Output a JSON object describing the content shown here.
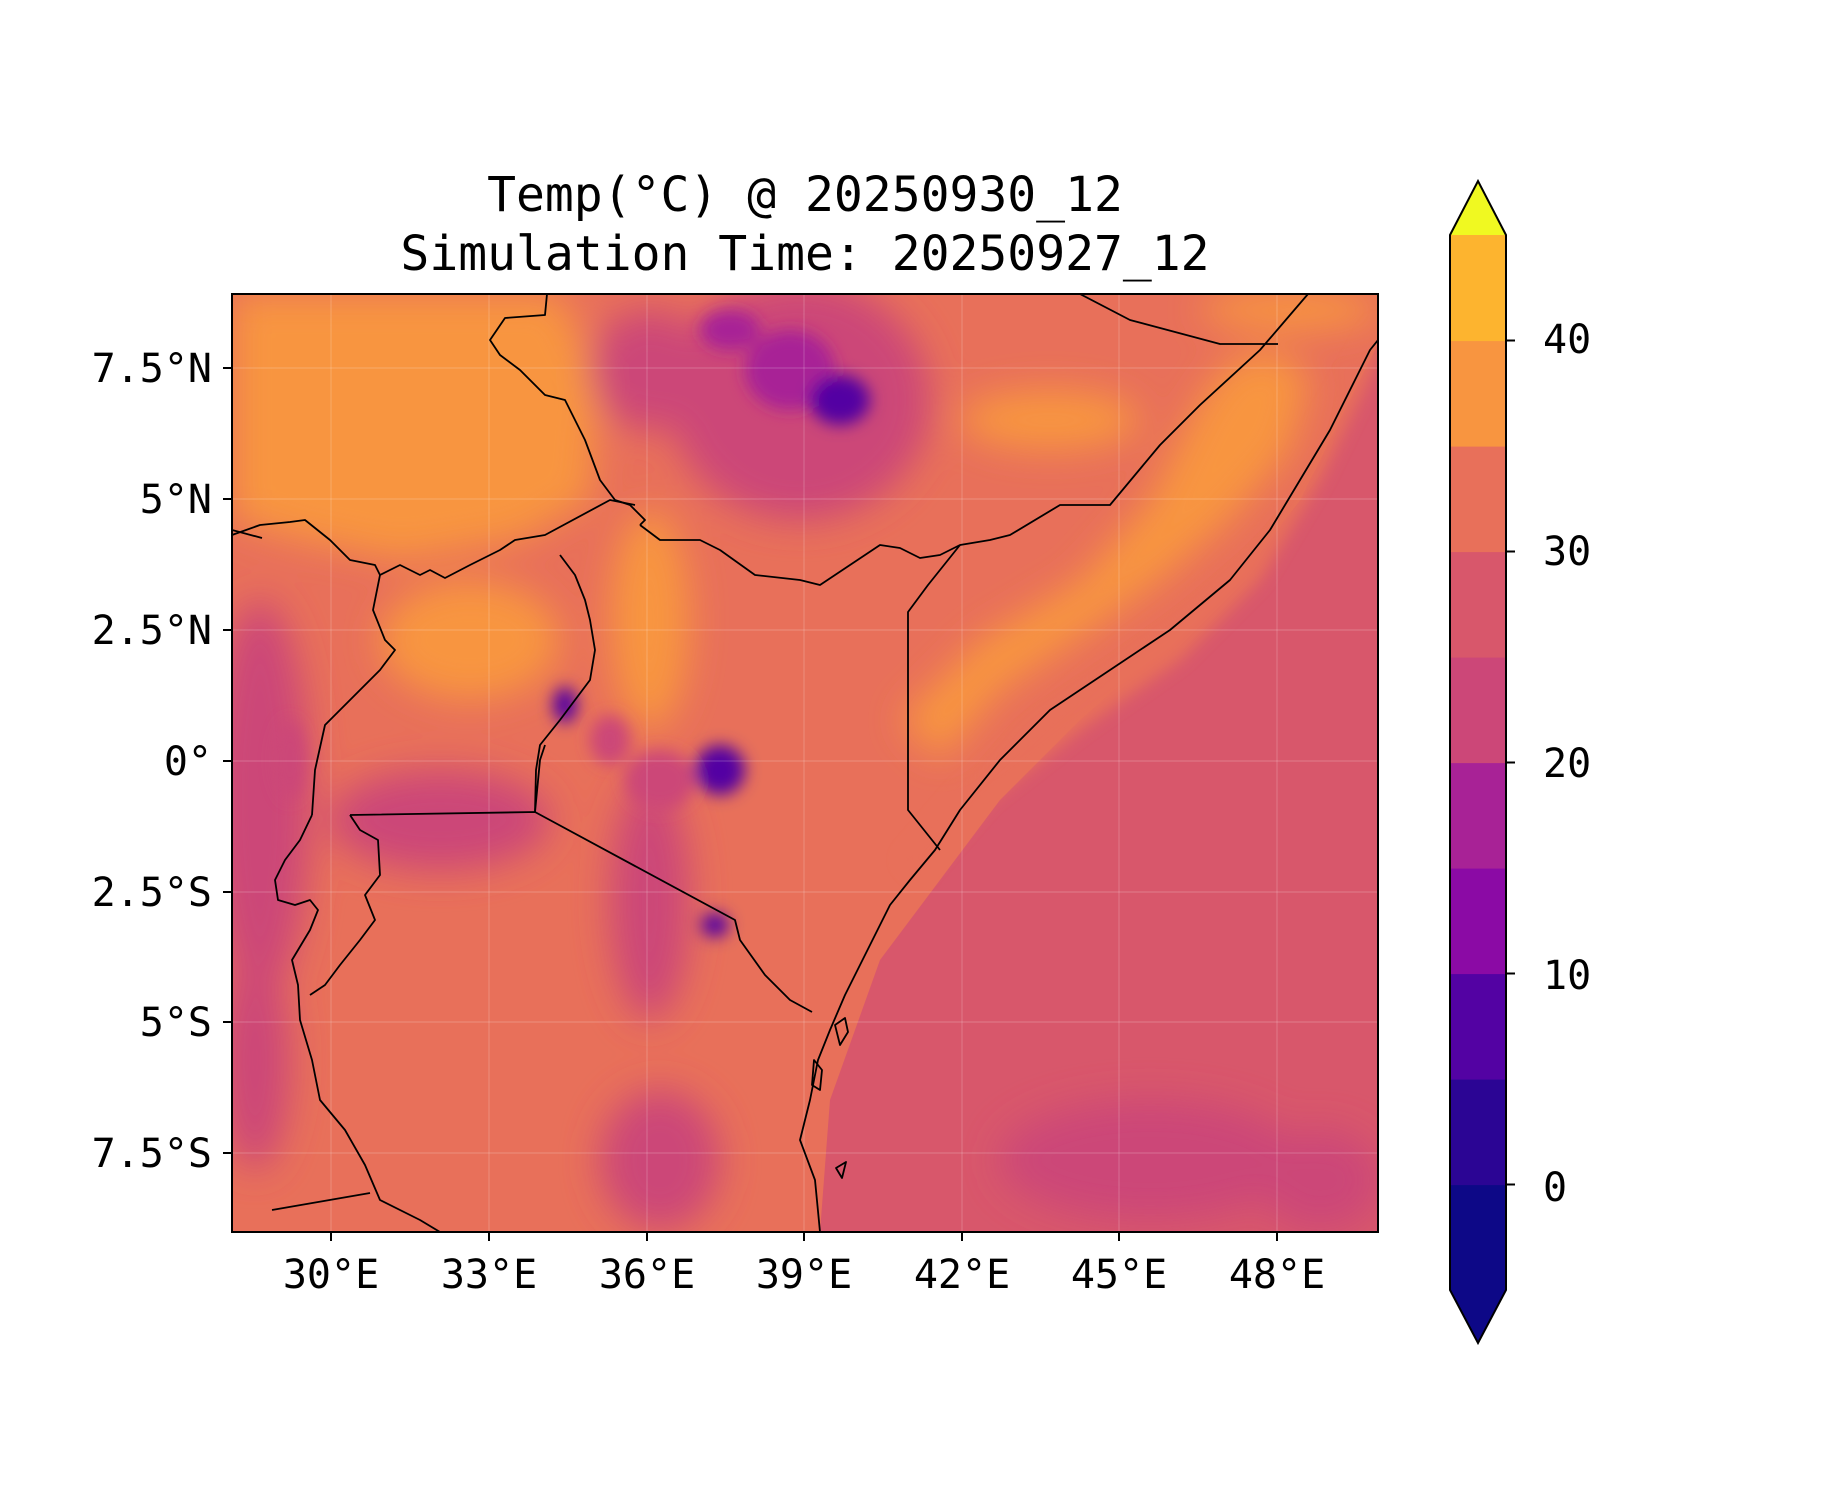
{
  "title_line_1": "Temp(°C) @ 20250930_12",
  "title_line_2": "Simulation Time: 20250927_12",
  "chart_data": {
    "type": "heatmap",
    "variable": "Temp(°C)",
    "valid_time": "20250930_12",
    "simulation_time": "20250927_12",
    "xlim": [
      27.5,
      49.3
    ],
    "ylim": [
      -9.3,
      8.7
    ],
    "x_ticks": [
      {
        "value": 30,
        "label": "30°E"
      },
      {
        "value": 33,
        "label": "33°E"
      },
      {
        "value": 36,
        "label": "36°E"
      },
      {
        "value": 39,
        "label": "39°E"
      },
      {
        "value": 42,
        "label": "42°E"
      },
      {
        "value": 45,
        "label": "45°E"
      },
      {
        "value": 48,
        "label": "48°E"
      }
    ],
    "y_ticks": [
      {
        "value": 7.5,
        "label": "7.5°N"
      },
      {
        "value": 5,
        "label": "5°N"
      },
      {
        "value": 2.5,
        "label": "2.5°N"
      },
      {
        "value": 0,
        "label": "0°"
      },
      {
        "value": -2.5,
        "label": "2.5°S"
      },
      {
        "value": -5,
        "label": "5°S"
      },
      {
        "value": -7.5,
        "label": "7.5°S"
      }
    ],
    "grid": true,
    "colorbar": {
      "levels": [
        -5,
        0,
        5,
        10,
        15,
        20,
        25,
        30,
        35,
        40,
        45
      ],
      "colors": [
        "#0d0887",
        "#2b0594",
        "#5302a3",
        "#8b0aa5",
        "#a82296",
        "#cc4778",
        "#d8576b",
        "#e8705a",
        "#f89540",
        "#fdb42f",
        "#f0f921"
      ],
      "extend": "both",
      "ticks": [
        {
          "value": 0,
          "label": "0"
        },
        {
          "value": 10,
          "label": "10"
        },
        {
          "value": 20,
          "label": "20"
        },
        {
          "value": 30,
          "label": "30"
        },
        {
          "value": 40,
          "label": "40"
        }
      ],
      "cmap": "plasma"
    },
    "regions": [
      {
        "name": "ocean",
        "value": 28
      },
      {
        "name": "northeast coast band",
        "value": 33
      },
      {
        "name": "northeast interior",
        "value": 37
      },
      {
        "name": "south sudan plains",
        "value": 37
      },
      {
        "name": "ethiopian highlands",
        "value": 18,
        "min": 7
      },
      {
        "name": "kenya highlands",
        "value": 20,
        "min": 8
      },
      {
        "name": "western rift",
        "value": 24
      },
      {
        "name": "tanzania interior",
        "value": 32
      },
      {
        "name": "southeast ocean patch",
        "value": 24
      }
    ]
  }
}
